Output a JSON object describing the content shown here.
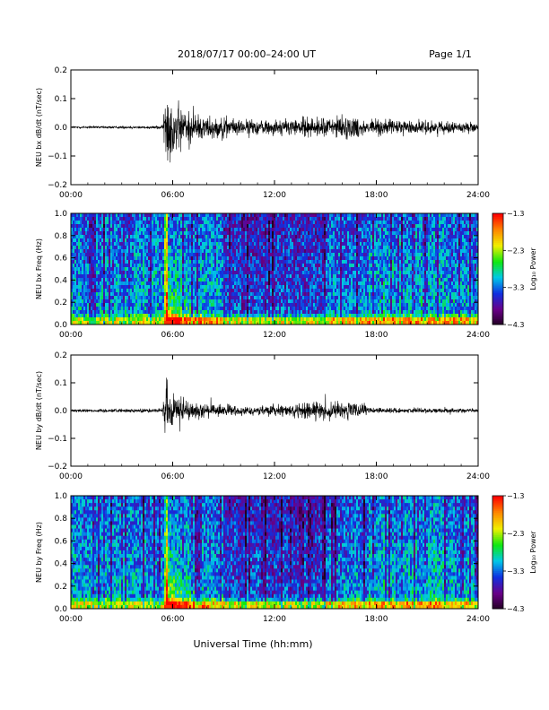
{
  "header": {
    "title": "2018/07/17  00:00–24:00 UT",
    "page": "Page 1/1"
  },
  "footer": {
    "xlabel": "Universal Time (hh:mm)"
  },
  "colors": {
    "trace": "#000000",
    "colormap": [
      "#200020",
      "#6a0088",
      "#1030e0",
      "#00c8e8",
      "#10e810",
      "#f0f000",
      "#ff8800",
      "#ff0000"
    ]
  },
  "chart_data": [
    {
      "type": "line",
      "ylabel": "NEU bx dB/dt (nT/sec)",
      "xlim": [
        0,
        24
      ],
      "ylim": [
        -0.2,
        0.2
      ],
      "yticks": [
        "0.2",
        "0.1",
        "0.0",
        "−0.1",
        "−0.2"
      ],
      "xticks": [
        "00:00",
        "06:00",
        "12:00",
        "18:00",
        "24:00"
      ],
      "envelope": {
        "hours": [
          0,
          5,
          5.4,
          5.6,
          5.8,
          6.0,
          6.5,
          7,
          8,
          9,
          10,
          11,
          12,
          13,
          14,
          15,
          16,
          17,
          17.5,
          18,
          19,
          20,
          21,
          22,
          23,
          24
        ],
        "amplitude": [
          0.006,
          0.008,
          0.01,
          0.2,
          0.19,
          0.15,
          0.11,
          0.08,
          0.06,
          0.05,
          0.04,
          0.04,
          0.04,
          0.045,
          0.05,
          0.05,
          0.06,
          0.055,
          0.03,
          0.045,
          0.04,
          0.035,
          0.035,
          0.03,
          0.025,
          0.02
        ]
      }
    },
    {
      "type": "heatmap",
      "ylabel": "NEU bx Freq (Hz)",
      "xlim": [
        0,
        24
      ],
      "ylim": [
        0.0,
        1.0
      ],
      "yticks": [
        "1.0",
        "0.8",
        "0.6",
        "0.4",
        "0.2",
        "0.0"
      ],
      "xticks": [
        "00:00",
        "06:00",
        "12:00",
        "18:00",
        "24:00"
      ],
      "colorbar": {
        "label": "Log₁₀ Power",
        "ticks": [
          "−1.3",
          "−2.3",
          "−3.3",
          "−4.3"
        ],
        "range": [
          -4.3,
          -1.3
        ]
      },
      "onset_hour": 5.6
    },
    {
      "type": "line",
      "ylabel": "NEU by dB/dt (nT/sec)",
      "xlim": [
        0,
        24
      ],
      "ylim": [
        -0.2,
        0.2
      ],
      "yticks": [
        "0.2",
        "0.1",
        "0.0",
        "−0.1",
        "−0.2"
      ],
      "xticks": [
        "00:00",
        "06:00",
        "12:00",
        "18:00",
        "24:00"
      ],
      "envelope": {
        "hours": [
          0,
          5,
          5.4,
          5.6,
          5.8,
          6.0,
          6.5,
          7,
          8,
          9,
          10,
          11,
          12,
          13,
          14,
          15,
          16,
          17,
          17.5,
          18,
          19,
          20,
          21,
          22,
          23,
          24
        ],
        "amplitude": [
          0.008,
          0.01,
          0.012,
          0.18,
          0.14,
          0.1,
          0.07,
          0.05,
          0.035,
          0.03,
          0.025,
          0.025,
          0.03,
          0.035,
          0.045,
          0.05,
          0.05,
          0.04,
          0.02,
          0.015,
          0.015,
          0.012,
          0.012,
          0.012,
          0.012,
          0.01
        ]
      }
    },
    {
      "type": "heatmap",
      "ylabel": "NEU by Freq (Hz)",
      "xlim": [
        0,
        24
      ],
      "ylim": [
        0.0,
        1.0
      ],
      "yticks": [
        "1.0",
        "0.8",
        "0.6",
        "0.4",
        "0.2",
        "0.0"
      ],
      "xticks": [
        "00:00",
        "06:00",
        "12:00",
        "18:00",
        "24:00"
      ],
      "colorbar": {
        "label": "Log₁₀ Power",
        "ticks": [
          "−1.3",
          "−2.3",
          "−3.3",
          "−4.3"
        ],
        "range": [
          -4.3,
          -1.3
        ]
      },
      "onset_hour": 5.6
    }
  ]
}
